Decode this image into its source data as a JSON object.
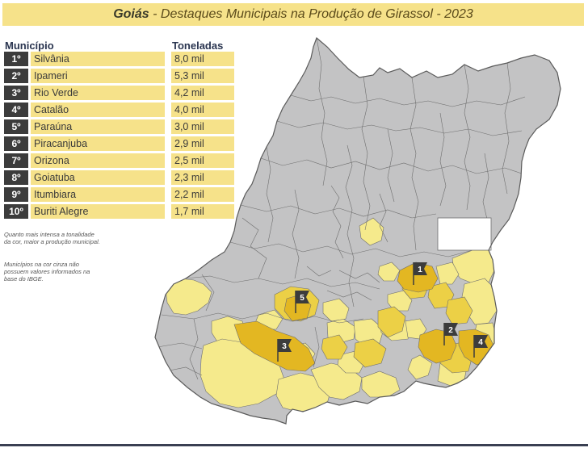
{
  "title": {
    "state": "Goiás",
    "rest": " - Destaques Municipais na Produção de Girassol - 2023"
  },
  "table": {
    "header_municipio": "Município",
    "header_toneladas": "Toneladas",
    "rows": [
      {
        "rank": "1º",
        "name": "Silvânia",
        "value": "8,0 mil"
      },
      {
        "rank": "2º",
        "name": "Ipameri",
        "value": "5,3 mil"
      },
      {
        "rank": "3º",
        "name": "Rio Verde",
        "value": "4,2 mil"
      },
      {
        "rank": "4º",
        "name": "Catalão",
        "value": "4,0 mil"
      },
      {
        "rank": "5º",
        "name": "Paraúna",
        "value": "3,0 mil"
      },
      {
        "rank": "6º",
        "name": "Piracanjuba",
        "value": "2,9 mil"
      },
      {
        "rank": "7º",
        "name": "Orizona",
        "value": "2,5 mil"
      },
      {
        "rank": "8º",
        "name": "Goiatuba",
        "value": "2,3 mil"
      },
      {
        "rank": "9º",
        "name": "Itumbiara",
        "value": "2,2 mil"
      },
      {
        "rank": "10º",
        "name": "Buriti Alegre",
        "value": "1,7 mil"
      }
    ]
  },
  "notes": {
    "intensity": "Quanto mais intensa a tonalidade da cor, maior a produção municipal.",
    "gray": "Municípios na cor cinza não possuem valores informados na base do IBGE."
  },
  "map_flags": [
    {
      "label": "1"
    },
    {
      "label": "2"
    },
    {
      "label": "3"
    },
    {
      "label": "4"
    },
    {
      "label": "5"
    }
  ],
  "colors": {
    "title_bg": "#f6e28a",
    "no_data": "#c3c3c4",
    "low": "#f5ea8c",
    "mid": "#ecd046",
    "high": "#e3b722",
    "border": "#6e6e6e",
    "flag": "#3c3c3c"
  }
}
